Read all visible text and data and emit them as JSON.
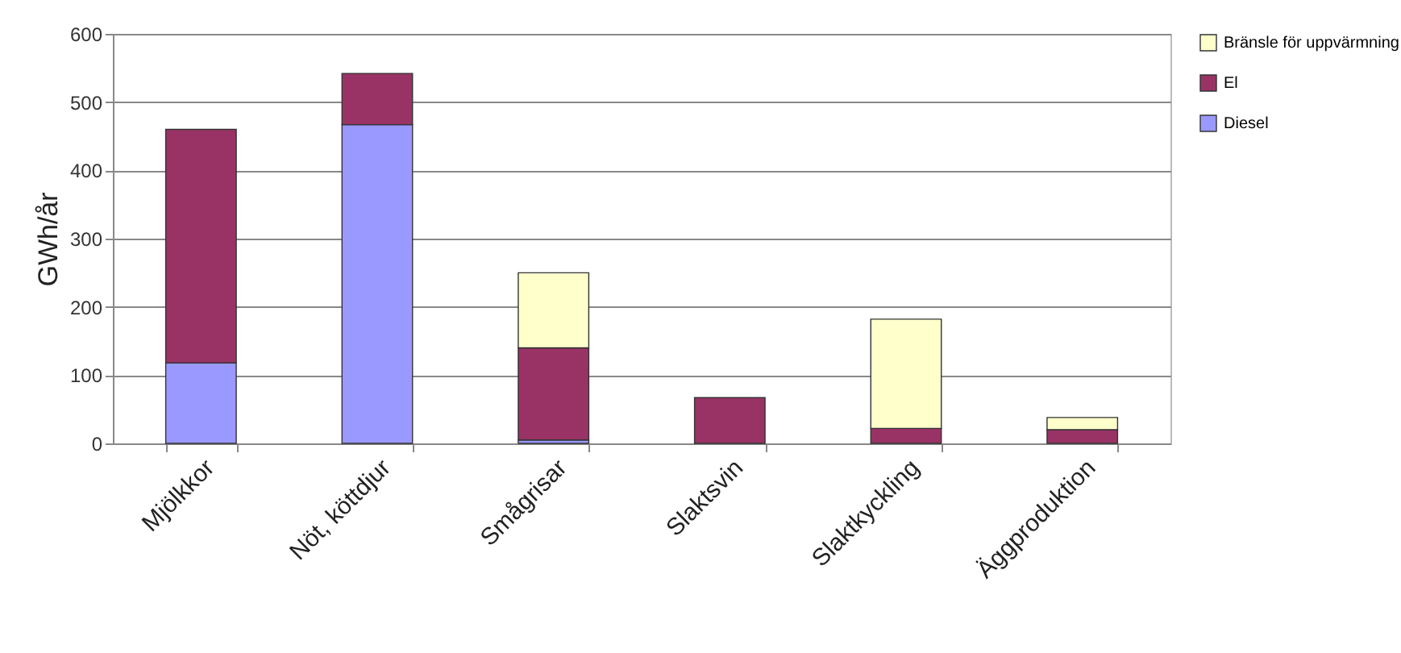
{
  "chart_data": {
    "type": "bar",
    "stacked": true,
    "ylabel": "GWh/år",
    "categories": [
      "Mjölkkor",
      "Nöt, köttdjur",
      "Smågrisar",
      "Slaktsvin",
      "Slaktkyckling",
      "Äggproduktion"
    ],
    "series": [
      {
        "name": "Diesel",
        "color": "#9999ff",
        "values": [
          118,
          467,
          5,
          null,
          null,
          null
        ]
      },
      {
        "name": "El",
        "color": "#993366",
        "values": [
          342,
          75,
          135,
          67,
          22,
          20
        ]
      },
      {
        "name": "Bränsle för uppvärmning",
        "color": "#ffffcc",
        "values": [
          null,
          null,
          110,
          null,
          160,
          18
        ]
      }
    ],
    "ylim": [
      0,
      600
    ],
    "yticks": [
      0,
      100,
      200,
      300,
      400,
      500,
      600
    ],
    "grid": "y",
    "legend": "right"
  }
}
